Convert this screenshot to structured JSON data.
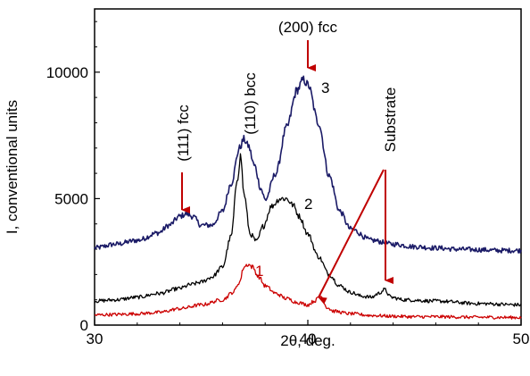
{
  "chart_data": {
    "type": "line",
    "xlabel": "2θ, deg.",
    "ylabel": "I, conventional units",
    "xlim": [
      30,
      50
    ],
    "ylim": [
      0,
      12500
    ],
    "x_ticks": [
      30,
      40,
      50
    ],
    "y_ticks": [
      0,
      5000,
      10000
    ],
    "grid": false,
    "legend": "none",
    "series": [
      {
        "name": "3",
        "color": "#1a1a66",
        "x": [
          30,
          31,
          32,
          33,
          33.5,
          34,
          34.3,
          34.6,
          35,
          35.5,
          36,
          36.4,
          36.8,
          37.0,
          37.2,
          37.5,
          37.8,
          38.0,
          38.5,
          39.0,
          39.5,
          39.8,
          40.0,
          40.5,
          41.0,
          41.5,
          42,
          43,
          44,
          45,
          46,
          47,
          48,
          49,
          50
        ],
        "values": [
          3050,
          3200,
          3350,
          3650,
          3950,
          4300,
          4400,
          4300,
          3950,
          3950,
          4500,
          5600,
          7000,
          7350,
          7100,
          6300,
          5400,
          4950,
          6000,
          7800,
          9300,
          9700,
          9500,
          8000,
          5900,
          4500,
          3800,
          3350,
          3200,
          3100,
          3050,
          3000,
          2980,
          2950,
          2950
        ]
      },
      {
        "name": "2",
        "color": "#000000",
        "x": [
          30,
          31,
          32,
          33,
          34,
          34.5,
          35,
          35.5,
          36,
          36.4,
          36.7,
          36.85,
          37.0,
          37.3,
          37.6,
          37.9,
          38.3,
          38.7,
          39.0,
          39.3,
          39.6,
          40.0,
          40.5,
          41.0,
          41.5,
          42,
          42.5,
          43,
          43.3,
          43.6,
          43.9,
          44.5,
          46,
          48,
          50
        ],
        "values": [
          950,
          1000,
          1100,
          1250,
          1450,
          1600,
          1700,
          1900,
          2300,
          3500,
          5800,
          6700,
          5200,
          3600,
          3300,
          3900,
          4700,
          5000,
          5000,
          4750,
          4300,
          3600,
          2700,
          2000,
          1550,
          1300,
          1150,
          1100,
          1250,
          1400,
          1100,
          1000,
          950,
          850,
          800
        ]
      },
      {
        "name": "1",
        "color": "#cc0000",
        "x": [
          30,
          31,
          32,
          33,
          34,
          35,
          36,
          36.5,
          36.8,
          37.0,
          37.2,
          37.4,
          37.7,
          38.0,
          38.5,
          39.0,
          39.5,
          40.0,
          40.3,
          40.6,
          40.9,
          41.2,
          42,
          43,
          44,
          45,
          46,
          48,
          50
        ],
        "values": [
          400,
          420,
          450,
          500,
          650,
          800,
          1000,
          1300,
          1700,
          2300,
          2400,
          2300,
          1900,
          1550,
          1250,
          1050,
          900,
          800,
          950,
          1150,
          700,
          550,
          450,
          380,
          350,
          330,
          330,
          310,
          300
        ]
      }
    ],
    "annotations": [
      {
        "text": "(200) fcc",
        "x": 40,
        "y": 11200
      },
      {
        "text": "(110) bcc",
        "x": 37.6,
        "y": 8600
      },
      {
        "text": "(111) fcc",
        "x": 34.3,
        "y": 6400
      },
      {
        "text": "Substrate",
        "x": 43.6,
        "y": 8500
      },
      {
        "text": "3",
        "x": 41.1,
        "y": 9400
      },
      {
        "text": "2",
        "x": 40.2,
        "y": 4700
      },
      {
        "text": "1",
        "x": 38.0,
        "y": 2300
      }
    ]
  }
}
